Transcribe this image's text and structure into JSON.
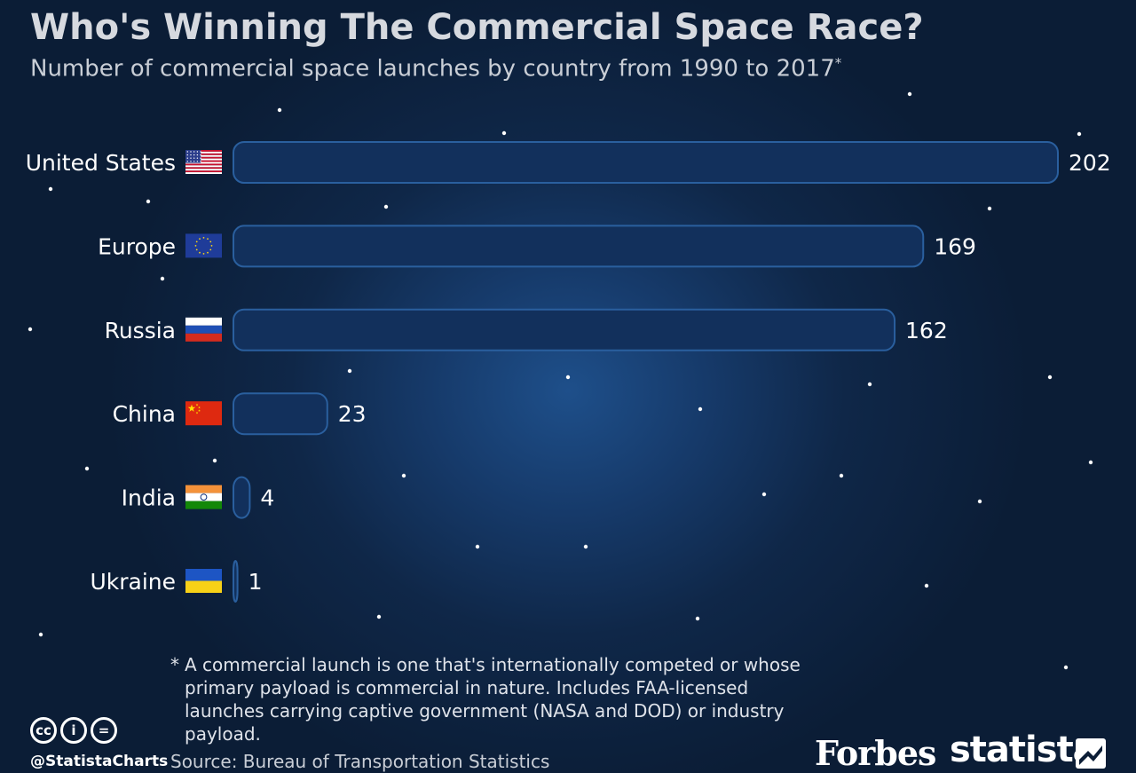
{
  "header": {
    "title": "Who's Winning The Commercial Space Race?",
    "subtitle": "Number of commercial space launches by country from 1990 to 2017",
    "subtitle_mark": "*"
  },
  "chart_data": {
    "type": "bar",
    "orientation": "horizontal",
    "categories": [
      "United States",
      "Europe",
      "Russia",
      "China",
      "India",
      "Ukraine"
    ],
    "values": [
      202,
      169,
      162,
      23,
      4,
      1
    ],
    "title": "Who's Winning The Commercial Space Race?",
    "subtitle": "Number of commercial space launches by country from 1990 to 2017*",
    "xlabel": "",
    "ylabel": "",
    "xlim": [
      0,
      202
    ],
    "grid": false,
    "legend": "none",
    "bar_color": "#12305c",
    "bar_edge_color": "#2a5f9e"
  },
  "flags": [
    "us-flag-icon",
    "eu-flag-icon",
    "russia-flag-icon",
    "china-flag-icon",
    "india-flag-icon",
    "ukraine-flag-icon"
  ],
  "footnote": {
    "marker": "*",
    "text": "A commercial launch is one that's internationally competed or whose primary payload is commercial in nature. Includes FAA-licensed launches carrying captive government (NASA and DOD) or industry payload."
  },
  "footer": {
    "license_icons": [
      "creative-commons-icon",
      "attribution-icon",
      "no-derivatives-icon"
    ],
    "license_glyphs": [
      "cc",
      "i",
      "="
    ],
    "handle": "@StatistaCharts",
    "source": "Source: Bureau of Transportation Statistics",
    "forbes_logo": "Forbes",
    "statista_logo": "statista"
  }
}
